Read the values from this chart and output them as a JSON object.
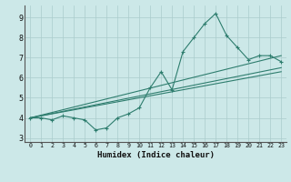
{
  "xlabel": "Humidex (Indice chaleur)",
  "xlim": [
    -0.5,
    23.5
  ],
  "ylim": [
    2.8,
    9.6
  ],
  "xticks": [
    0,
    1,
    2,
    3,
    4,
    5,
    6,
    7,
    8,
    9,
    10,
    11,
    12,
    13,
    14,
    15,
    16,
    17,
    18,
    19,
    20,
    21,
    22,
    23
  ],
  "yticks": [
    3,
    4,
    5,
    6,
    7,
    8,
    9
  ],
  "line_color": "#2e7d6e",
  "bg_color": "#cce8e8",
  "grid_color": "#aacccc",
  "line1_x": [
    0,
    1,
    2,
    3,
    4,
    5,
    6,
    7,
    8,
    9,
    10,
    11,
    12,
    13,
    14,
    15,
    16,
    17,
    18,
    19,
    20,
    21,
    22,
    23
  ],
  "line1_y": [
    4.0,
    4.0,
    3.9,
    4.1,
    4.0,
    3.9,
    3.4,
    3.5,
    4.0,
    4.2,
    4.5,
    5.5,
    6.3,
    5.4,
    7.3,
    8.0,
    8.7,
    9.2,
    8.1,
    7.5,
    6.9,
    7.1,
    7.1,
    6.8
  ],
  "line2_x": [
    0,
    23
  ],
  "line2_y": [
    4.0,
    6.5
  ],
  "line3_x": [
    0,
    23
  ],
  "line3_y": [
    4.0,
    6.3
  ],
  "line4_x": [
    0,
    23
  ],
  "line4_y": [
    4.0,
    7.1
  ]
}
